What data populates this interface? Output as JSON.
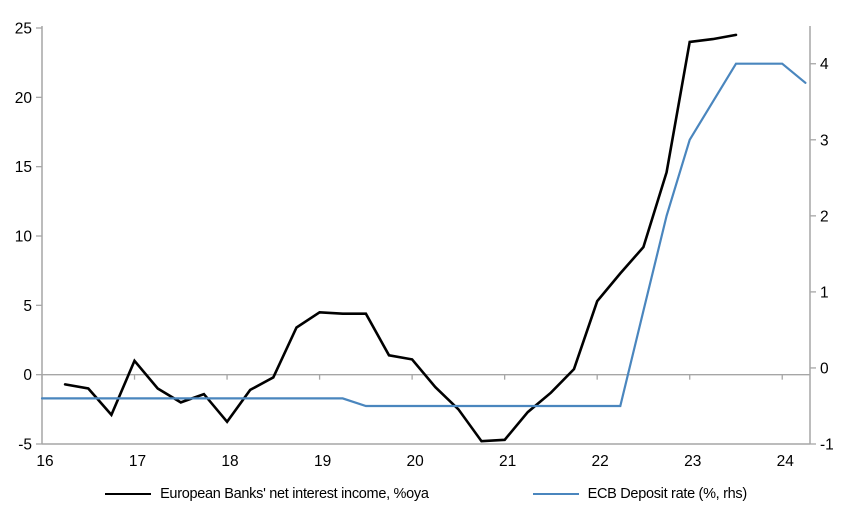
{
  "chart_data": {
    "type": "line",
    "title": "",
    "xlabel": "",
    "ylabel_left": "",
    "ylabel_right": "",
    "grid": "zero-gridline-only",
    "legend_position": "bottom-center",
    "x_axis": {
      "min": 16,
      "max": 24.3,
      "ticks": [
        16,
        17,
        18,
        19,
        20,
        21,
        22,
        23,
        24
      ],
      "tick_labels": [
        "16",
        "17",
        "18",
        "19",
        "20",
        "21",
        "22",
        "23",
        "24"
      ]
    },
    "left_axis": {
      "min": -5,
      "max": 25,
      "ticks": [
        -5,
        0,
        5,
        10,
        15,
        20,
        25
      ],
      "tick_labels": [
        "-5",
        "0",
        "5",
        "10",
        "15",
        "20",
        "25"
      ]
    },
    "right_axis": {
      "min": -1,
      "max": 4.47,
      "ticks": [
        -1,
        0,
        1,
        2,
        3,
        4
      ],
      "tick_labels": [
        "-1",
        "0",
        "1",
        "2",
        "3",
        "4"
      ]
    },
    "series": [
      {
        "name": "European Banks' net interest income, %oya",
        "axis": "left",
        "color": "#000000",
        "stroke_width": 2.6,
        "x": [
          16.25,
          16.5,
          16.75,
          17.0,
          17.25,
          17.5,
          17.75,
          18.0,
          18.25,
          18.5,
          18.75,
          19.0,
          19.25,
          19.5,
          19.75,
          20.0,
          20.25,
          20.5,
          20.75,
          21.0,
          21.25,
          21.5,
          21.75,
          22.0,
          22.25,
          22.5,
          22.75,
          23.0,
          23.25,
          23.5
        ],
        "values": [
          -0.7,
          -1.0,
          -2.9,
          1.0,
          -1.0,
          -2.0,
          -1.4,
          -3.4,
          -1.1,
          -0.2,
          3.4,
          4.5,
          4.4,
          4.4,
          1.4,
          1.1,
          -0.9,
          -2.5,
          -4.8,
          -4.7,
          -2.7,
          -1.3,
          0.4,
          5.3,
          7.3,
          9.2,
          14.6,
          24.0,
          24.2,
          24.5
        ]
      },
      {
        "name": "ECB Deposit rate (%, rhs)",
        "axis": "right",
        "color": "#4A86BE",
        "stroke_width": 2.2,
        "x": [
          16.0,
          16.25,
          16.5,
          16.75,
          17.0,
          17.25,
          17.5,
          17.75,
          18.0,
          18.25,
          18.5,
          18.75,
          19.0,
          19.25,
          19.5,
          19.75,
          20.0,
          20.25,
          20.5,
          20.75,
          21.0,
          21.25,
          21.5,
          21.75,
          22.0,
          22.25,
          22.5,
          22.75,
          23.0,
          23.25,
          23.5,
          23.75,
          24.0,
          24.25
        ],
        "values": [
          -0.4,
          -0.4,
          -0.4,
          -0.4,
          -0.4,
          -0.4,
          -0.4,
          -0.4,
          -0.4,
          -0.4,
          -0.4,
          -0.4,
          -0.4,
          -0.4,
          -0.5,
          -0.5,
          -0.5,
          -0.5,
          -0.5,
          -0.5,
          -0.5,
          -0.5,
          -0.5,
          -0.5,
          -0.5,
          -0.5,
          0.75,
          2.0,
          3.0,
          3.5,
          4.0,
          4.0,
          4.0,
          3.75
        ]
      }
    ]
  },
  "colors": {
    "background": "#FFFFFF",
    "axis_line": "#A6A6A6",
    "zero_gridline": "#A6A6A6",
    "tick_text": "#000000"
  }
}
